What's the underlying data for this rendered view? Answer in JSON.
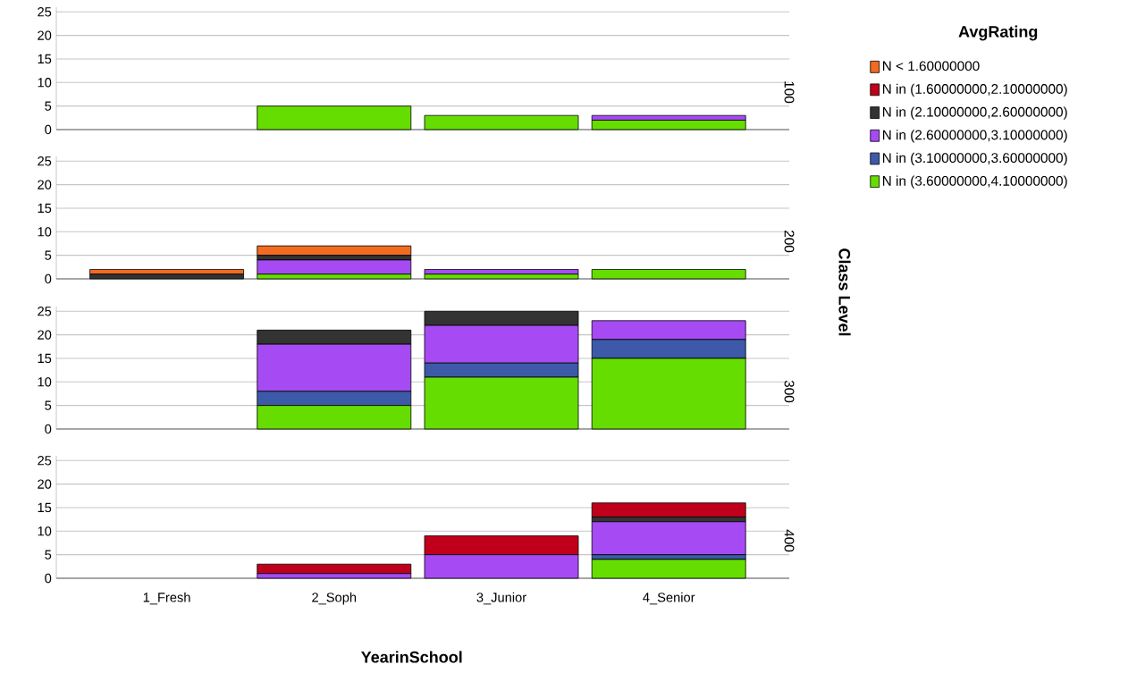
{
  "chart_data": [
    {
      "type": "bar",
      "stacked": true,
      "title": "100",
      "y2label": "Class Level",
      "legend_title": "AvgRating",
      "legend": "right",
      "tick_labels": "y",
      "grid": "y",
      "categories": [
        null,
        null,
        null,
        null
      ],
      "ylim": [
        0,
        26
      ],
      "yticks": [
        0,
        5,
        10,
        15,
        20,
        25
      ],
      "series": [
        {
          "name": "N in (3.60000000,4.10000000)",
          "color": "#66dd00",
          "values": [
            0,
            5,
            3,
            2
          ]
        },
        {
          "name": "N in (3.10000000,3.60000000)",
          "color": "#3c5aa8",
          "values": [
            0,
            0,
            0,
            0
          ]
        },
        {
          "name": "N in (2.60000000,3.10000000)",
          "color": "#a64bf4",
          "values": [
            0,
            0,
            0,
            1
          ]
        },
        {
          "name": "N in (2.10000000,2.60000000)",
          "color": "#333333",
          "values": [
            0,
            0,
            0,
            0
          ]
        },
        {
          "name": "N in (1.60000000,2.10000000)",
          "color": "#c0001a",
          "values": [
            0,
            0,
            0,
            0
          ]
        },
        {
          "name": "N < 1.60000000",
          "color": "#f26b21",
          "values": [
            0,
            0,
            0,
            0
          ]
        }
      ]
    },
    {
      "type": "bar",
      "stacked": true,
      "title": "200",
      "tick_labels": "y",
      "grid": "y",
      "categories": [
        null,
        null,
        null,
        null
      ],
      "ylim": [
        0,
        26
      ],
      "yticks": [
        0,
        5,
        10,
        15,
        20,
        25
      ],
      "series": [
        {
          "color": "#66dd00",
          "values": [
            0,
            1,
            1,
            2
          ]
        },
        {
          "color": "#3c5aa8",
          "values": [
            0,
            0,
            0,
            0
          ]
        },
        {
          "color": "#a64bf4",
          "values": [
            0,
            3,
            1,
            0
          ]
        },
        {
          "color": "#333333",
          "values": [
            1,
            1,
            0,
            0
          ]
        },
        {
          "color": "#c0001a",
          "values": [
            0,
            0,
            0,
            0
          ]
        },
        {
          "color": "#f26b21",
          "values": [
            1,
            2,
            0,
            0
          ]
        }
      ]
    },
    {
      "type": "bar",
      "stacked": true,
      "title": "300",
      "tick_labels": "y",
      "grid": "y",
      "categories": [
        null,
        null,
        null,
        null
      ],
      "ylim": [
        0,
        26
      ],
      "yticks": [
        0,
        5,
        10,
        15,
        20,
        25
      ],
      "series": [
        {
          "color": "#66dd00",
          "values": [
            0,
            5,
            11,
            15
          ]
        },
        {
          "color": "#3c5aa8",
          "values": [
            0,
            3,
            3,
            4
          ]
        },
        {
          "color": "#a64bf4",
          "values": [
            0,
            10,
            8,
            4
          ]
        },
        {
          "color": "#333333",
          "values": [
            0,
            3,
            3,
            0
          ]
        },
        {
          "color": "#c0001a",
          "values": [
            0,
            0,
            0,
            0
          ]
        },
        {
          "color": "#f26b21",
          "values": [
            0,
            0,
            0,
            0
          ]
        }
      ]
    },
    {
      "type": "bar",
      "stacked": true,
      "title": "400",
      "xlabel": "YearinSchool",
      "grid": "y",
      "categories": [
        "1_Fresh",
        "2_Soph",
        "3_Junior",
        "4_Senior"
      ],
      "ylim": [
        0,
        26
      ],
      "yticks": [
        0,
        5,
        10,
        15,
        20,
        25
      ],
      "series": [
        {
          "color": "#66dd00",
          "values": [
            0,
            0,
            0,
            4
          ]
        },
        {
          "color": "#3c5aa8",
          "values": [
            0,
            0,
            0,
            1
          ]
        },
        {
          "color": "#a64bf4",
          "values": [
            0,
            1,
            5,
            7
          ]
        },
        {
          "color": "#333333",
          "values": [
            0,
            0,
            0,
            1
          ]
        },
        {
          "color": "#c0001a",
          "values": [
            0,
            2,
            4,
            3
          ]
        },
        {
          "color": "#f26b21",
          "values": [
            0,
            0,
            0,
            0
          ]
        }
      ]
    }
  ]
}
